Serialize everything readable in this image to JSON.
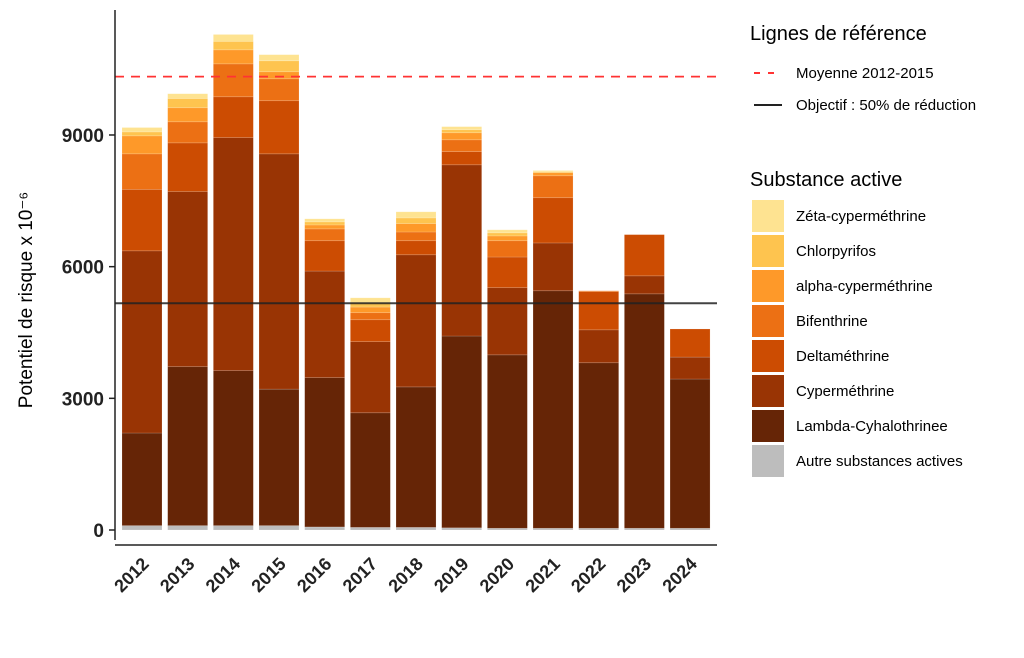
{
  "chart_data": {
    "type": "bar",
    "stacked": true,
    "title": "",
    "xlabel": "",
    "ylabel": "Potentiel de risque x 10⁻⁶",
    "ylim": [
      0,
      11850
    ],
    "yticks": [
      0,
      3000,
      6000,
      9000
    ],
    "grid": false,
    "legend_placement": "right",
    "categories": [
      "2012",
      "2013",
      "2014",
      "2015",
      "2016",
      "2017",
      "2018",
      "2019",
      "2020",
      "2021",
      "2022",
      "2023",
      "2024"
    ],
    "series": [
      {
        "name": "Autre substances actives",
        "color": "#BDBDBD",
        "values": [
          100,
          100,
          100,
          100,
          70,
          60,
          60,
          50,
          40,
          40,
          40,
          40,
          40
        ]
      },
      {
        "name": "Lambda-Cyhalothrinee",
        "color": "#662506",
        "values": [
          2110,
          3620,
          3530,
          3110,
          3400,
          2610,
          3200,
          4370,
          3950,
          5410,
          3770,
          5340,
          3400
        ]
      },
      {
        "name": "Cyperméthrine",
        "color": "#993404",
        "values": [
          4150,
          3990,
          5310,
          5360,
          2430,
          1620,
          3010,
          3900,
          1530,
          1090,
          750,
          410,
          500
        ]
      },
      {
        "name": "Deltaméthrine",
        "color": "#CC4C02",
        "values": [
          1400,
          1110,
          930,
          1210,
          690,
          500,
          320,
          300,
          700,
          1030,
          870,
          940,
          640
        ]
      },
      {
        "name": "Bifenthrine",
        "color": "#EC7014",
        "values": [
          810,
          480,
          750,
          500,
          270,
          160,
          200,
          270,
          370,
          500,
          20,
          0,
          0
        ]
      },
      {
        "name": "alpha-cyperméthrine",
        "color": "#FE9929",
        "values": [
          410,
          320,
          320,
          160,
          90,
          130,
          190,
          160,
          110,
          70,
          0,
          0,
          0
        ]
      },
      {
        "name": "Chlorpyrifos",
        "color": "#FEC44F",
        "values": [
          90,
          210,
          190,
          250,
          70,
          100,
          130,
          70,
          70,
          20,
          0,
          0,
          0
        ]
      },
      {
        "name": "Zéta-cyperméthrine",
        "color": "#FEE391",
        "values": [
          100,
          110,
          160,
          140,
          70,
          110,
          140,
          70,
          70,
          30,
          0,
          0,
          0
        ]
      }
    ],
    "reference_lines": [
      {
        "name": "Moyenne 2012-2015",
        "value": 10330,
        "color": "#FF3333",
        "style": "dashed"
      },
      {
        "name": "Objectif : 50% de réduction",
        "value": 5165,
        "color": "#222222",
        "style": "solid"
      }
    ],
    "legend": {
      "reference_title": "Lignes de référence",
      "substance_title": "Substance active",
      "substance_order": [
        "Zéta-cyperméthrine",
        "Chlorpyrifos",
        "alpha-cyperméthrine",
        "Bifenthrine",
        "Deltaméthrine",
        "Cyperméthrine",
        "Lambda-Cyhalothrinee",
        "Autre substances actives"
      ]
    }
  }
}
